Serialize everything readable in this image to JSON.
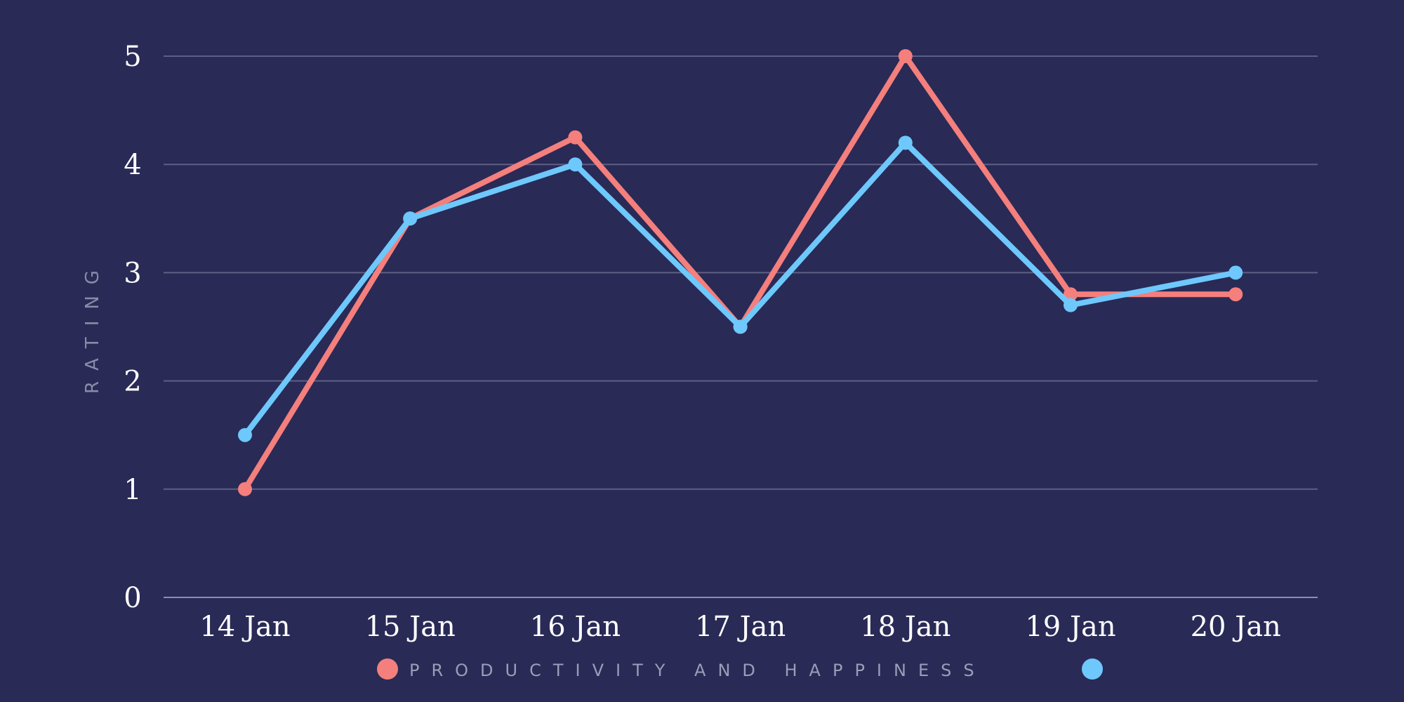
{
  "colors": {
    "background": "#292a56",
    "grid": "#5e5f85",
    "baseline": "#8d8eab",
    "productivity": "#f47f7c",
    "happiness": "#6ec8fb"
  },
  "chart_data": {
    "type": "line",
    "categories": [
      "14 Jan",
      "15 Jan",
      "16 Jan",
      "17 Jan",
      "18 Jan",
      "19 Jan",
      "20 Jan"
    ],
    "series": [
      {
        "color_key": "productivity",
        "values": [
          1,
          3.5,
          4.25,
          2.5,
          5,
          2.8,
          2.8
        ]
      },
      {
        "color_key": "happiness",
        "values": [
          1.5,
          3.5,
          4,
          2.5,
          4.2,
          2.7,
          3
        ]
      }
    ],
    "title": "",
    "xlabel": "",
    "ylabel": "RATING",
    "ylim": [
      0,
      5
    ],
    "yticks": [
      0,
      1,
      2,
      3,
      4,
      5
    ],
    "grid": true,
    "legend": {
      "text": "PRODUCTIVITY AND HAPPINESS",
      "placement": "bottom-center"
    }
  }
}
